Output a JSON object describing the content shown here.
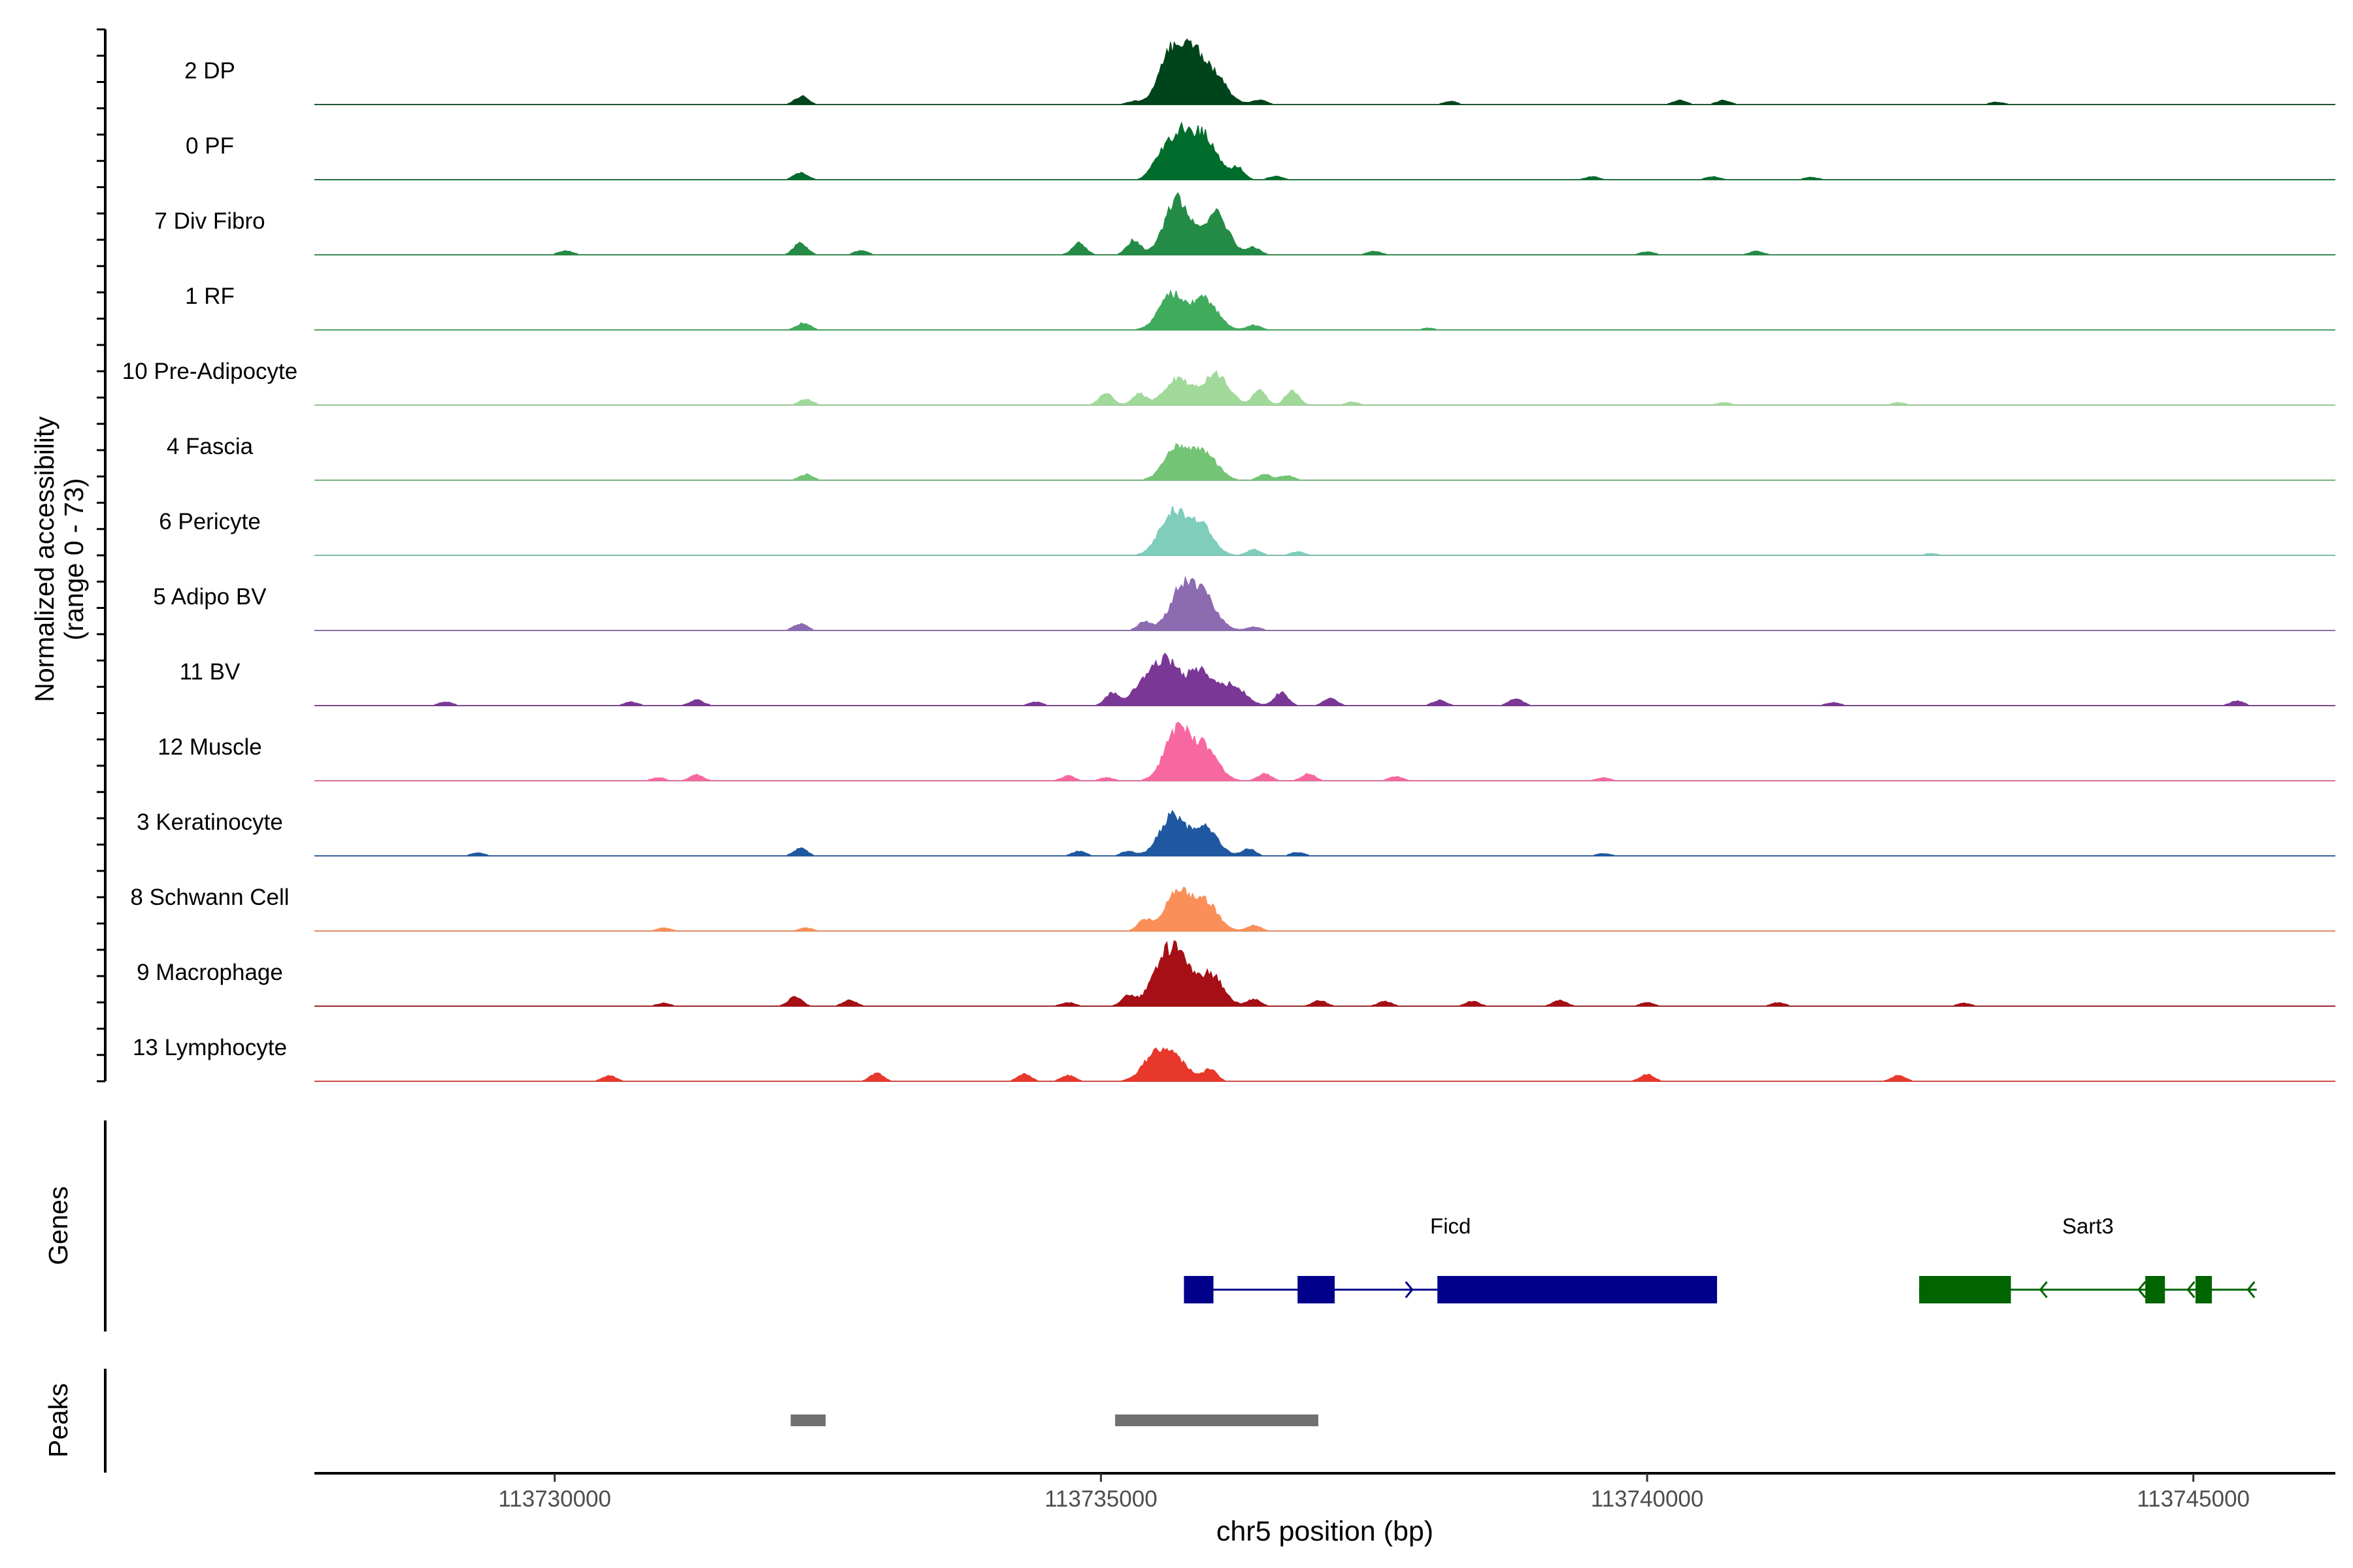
{
  "chart_data": {
    "type": "area",
    "y_axis_title": [
      "Normalized accessibility",
      "(range 0 - 73)"
    ],
    "genes_axis_title": "Genes",
    "peaks_axis_title": "Peaks",
    "x_axis_title": "chr5 position (bp)",
    "x_range": [
      113727800,
      113746300
    ],
    "x_ticks": [
      113730000,
      113735000,
      113740000,
      113745000
    ],
    "x_tick_labels": [
      "113730000",
      "113735000",
      "113740000",
      "113745000"
    ],
    "tracks": [
      {
        "name": "2 DP",
        "color": "#00441b",
        "peaks": [
          [
            113732260,
            0.14
          ],
          [
            113735300,
            0.05
          ],
          [
            113735650,
            0.85
          ],
          [
            113735850,
            0.75
          ],
          [
            113736050,
            0.4
          ],
          [
            113736450,
            0.08
          ],
          [
            113738200,
            0.05
          ],
          [
            113740300,
            0.07
          ],
          [
            113740700,
            0.07
          ],
          [
            113743200,
            0.04
          ]
        ]
      },
      {
        "name": "0 PF",
        "color": "#006d2c",
        "peaks": [
          [
            113732250,
            0.12
          ],
          [
            113735500,
            0.2
          ],
          [
            113735700,
            0.8
          ],
          [
            113735950,
            0.72
          ],
          [
            113736250,
            0.2
          ],
          [
            113736600,
            0.06
          ],
          [
            113739500,
            0.05
          ],
          [
            113740600,
            0.05
          ],
          [
            113741500,
            0.04
          ]
        ]
      },
      {
        "name": "7 Div Fibro",
        "color": "#238b45",
        "peaks": [
          [
            113730100,
            0.07
          ],
          [
            113732250,
            0.2
          ],
          [
            113732800,
            0.07
          ],
          [
            113734800,
            0.2
          ],
          [
            113735300,
            0.25
          ],
          [
            113735700,
            0.95
          ],
          [
            113736050,
            0.7
          ],
          [
            113736400,
            0.12
          ],
          [
            113737500,
            0.06
          ],
          [
            113740000,
            0.05
          ],
          [
            113741000,
            0.06
          ]
        ]
      },
      {
        "name": "1 RF",
        "color": "#41ab5d",
        "peaks": [
          [
            113732280,
            0.12
          ],
          [
            113735650,
            0.6
          ],
          [
            113735950,
            0.52
          ],
          [
            113736400,
            0.08
          ],
          [
            113738000,
            0.03
          ]
        ]
      },
      {
        "name": "10 Pre-Adipocyte",
        "color": "#a1d99b",
        "peaks": [
          [
            113732300,
            0.1
          ],
          [
            113735050,
            0.22
          ],
          [
            113735350,
            0.2
          ],
          [
            113735700,
            0.45
          ],
          [
            113736050,
            0.55
          ],
          [
            113736450,
            0.25
          ],
          [
            113736750,
            0.25
          ],
          [
            113737300,
            0.05
          ],
          [
            113740700,
            0.04
          ],
          [
            113742300,
            0.04
          ]
        ]
      },
      {
        "name": "4 Fascia",
        "color": "#74c476",
        "peaks": [
          [
            113732300,
            0.1
          ],
          [
            113735700,
            0.55
          ],
          [
            113735950,
            0.45
          ],
          [
            113736500,
            0.1
          ],
          [
            113736700,
            0.08
          ]
        ]
      },
      {
        "name": "6 Pericyte",
        "color": "#7fcdbb",
        "peaks": [
          [
            113735650,
            0.72
          ],
          [
            113735900,
            0.55
          ],
          [
            113736400,
            0.1
          ],
          [
            113736800,
            0.06
          ],
          [
            113742600,
            0.03
          ]
        ]
      },
      {
        "name": "5 Adipo BV",
        "color": "#8c6bb1",
        "peaks": [
          [
            113732250,
            0.12
          ],
          [
            113735400,
            0.15
          ],
          [
            113735750,
            0.72
          ],
          [
            113735950,
            0.5
          ],
          [
            113736400,
            0.06
          ]
        ]
      },
      {
        "name": "11 BV",
        "color": "#7a3795",
        "peaks": [
          [
            113729000,
            0.06
          ],
          [
            113730700,
            0.06
          ],
          [
            113731300,
            0.1
          ],
          [
            113734400,
            0.06
          ],
          [
            113735100,
            0.2
          ],
          [
            113735400,
            0.35
          ],
          [
            113735600,
            0.7
          ],
          [
            113735900,
            0.58
          ],
          [
            113736200,
            0.35
          ],
          [
            113736650,
            0.22
          ],
          [
            113737100,
            0.12
          ],
          [
            113738100,
            0.09
          ],
          [
            113738800,
            0.12
          ],
          [
            113741700,
            0.05
          ],
          [
            113745400,
            0.08
          ]
        ]
      },
      {
        "name": "12 Muscle",
        "color": "#f768a1",
        "peaks": [
          [
            113730950,
            0.05
          ],
          [
            113731300,
            0.1
          ],
          [
            113734700,
            0.08
          ],
          [
            113735050,
            0.05
          ],
          [
            113735700,
            0.85
          ],
          [
            113735950,
            0.55
          ],
          [
            113736500,
            0.12
          ],
          [
            113736900,
            0.12
          ],
          [
            113737700,
            0.07
          ],
          [
            113739600,
            0.05
          ]
        ]
      },
      {
        "name": "3 Keratinocyte",
        "color": "#1f58a0",
        "peaks": [
          [
            113729300,
            0.05
          ],
          [
            113732250,
            0.13
          ],
          [
            113734800,
            0.08
          ],
          [
            113735250,
            0.08
          ],
          [
            113735650,
            0.68
          ],
          [
            113735950,
            0.48
          ],
          [
            113736350,
            0.12
          ],
          [
            113736800,
            0.06
          ],
          [
            113739600,
            0.04
          ]
        ]
      },
      {
        "name": "8 Schwann Cell",
        "color": "#fb8f5a",
        "peaks": [
          [
            113731000,
            0.05
          ],
          [
            113732300,
            0.05
          ],
          [
            113735400,
            0.18
          ],
          [
            113735700,
            0.65
          ],
          [
            113735950,
            0.5
          ],
          [
            113736400,
            0.1
          ]
        ]
      },
      {
        "name": "9 Macrophage",
        "color": "#a50f15",
        "peaks": [
          [
            113731000,
            0.05
          ],
          [
            113732200,
            0.16
          ],
          [
            113732700,
            0.1
          ],
          [
            113734700,
            0.06
          ],
          [
            113735250,
            0.18
          ],
          [
            113735550,
            0.5
          ],
          [
            113735700,
            0.75
          ],
          [
            113736000,
            0.55
          ],
          [
            113736400,
            0.12
          ],
          [
            113737000,
            0.1
          ],
          [
            113737600,
            0.08
          ],
          [
            113738400,
            0.08
          ],
          [
            113739200,
            0.1
          ],
          [
            113740000,
            0.06
          ],
          [
            113741200,
            0.06
          ],
          [
            113742900,
            0.05
          ]
        ]
      },
      {
        "name": "13 Lymphocyte",
        "color": "#e8372b",
        "peaks": [
          [
            113730500,
            0.1
          ],
          [
            113732950,
            0.14
          ],
          [
            113734300,
            0.12
          ],
          [
            113734700,
            0.1
          ],
          [
            113735500,
            0.45
          ],
          [
            113735700,
            0.32
          ],
          [
            113736000,
            0.2
          ],
          [
            113740000,
            0.12
          ],
          [
            113742300,
            0.1
          ]
        ]
      }
    ],
    "genes": [
      {
        "name": "Ficd",
        "color": "#00008b",
        "strand": "+",
        "start": 113735760,
        "end": 113740640,
        "exons": [
          [
            113735760,
            113736030
          ],
          [
            113736800,
            113737140
          ],
          [
            113738080,
            113740640
          ]
        ],
        "arrows": [
          113735850,
          113737000,
          113737850
        ]
      },
      {
        "name": "Sart3",
        "color": "#006400",
        "strand": "-",
        "start": 113742490,
        "end": 113745580,
        "exons": [
          [
            113742490,
            113743330
          ],
          [
            113744560,
            113744740
          ],
          [
            113745020,
            113745170
          ]
        ],
        "arrows": [
          113743600,
          113744500,
          113744950,
          113745500
        ]
      }
    ],
    "peaks_track": [
      [
        113732160,
        113732480
      ],
      [
        113735130,
        113736990
      ]
    ]
  }
}
